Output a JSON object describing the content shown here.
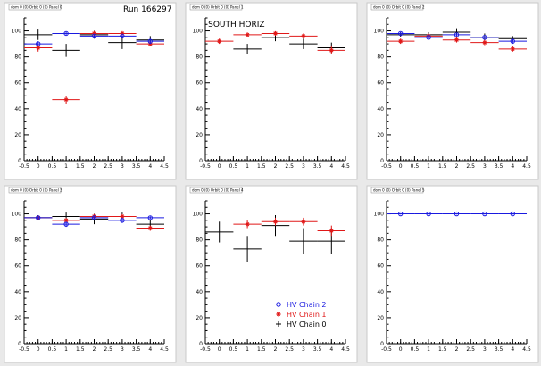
{
  "run_label": "Run 166297",
  "colors": {
    "blue": "#1a1ae0",
    "red": "#e01818",
    "black": "#000000",
    "pad": "#ffffff",
    "frame": "#c9c9c9",
    "bg": "#e9e9e9"
  },
  "legend": [
    {
      "label": "HV Chain 2",
      "color": "#1a1ae0",
      "marker": "circle"
    },
    {
      "label": "HV Chain 1",
      "color": "#e01818",
      "marker": "star"
    },
    {
      "label": "HV Chain 0",
      "color": "#000000",
      "marker": "cross"
    }
  ],
  "chart_data": [
    {
      "type": "scatter",
      "title": "dom 0 (0) Orbit 0 (0) Panel 0",
      "xlim": [
        -0.5,
        4.5
      ],
      "ylim": [
        0,
        110
      ],
      "xticks": [
        "-0.5",
        "0",
        "0.5",
        "1",
        "1.5",
        "2",
        "2.5",
        "3",
        "3.5",
        "4",
        "4.5"
      ],
      "yticks": [
        "0",
        "20",
        "40",
        "60",
        "80",
        "100"
      ],
      "annotation": "",
      "series": [
        {
          "name": "HV Chain 2",
          "color": "#1a1ae0",
          "marker": "circle",
          "x": [
            0,
            1,
            2,
            3,
            4
          ],
          "y": [
            90,
            98,
            96,
            96,
            92
          ],
          "yerr": [
            2,
            1,
            1,
            1,
            2
          ]
        },
        {
          "name": "HV Chain 1",
          "color": "#e01818",
          "marker": "star",
          "x": [
            0,
            1,
            2,
            3,
            4
          ],
          "y": [
            87,
            47,
            98,
            98,
            90
          ],
          "yerr": [
            3,
            3,
            1,
            1,
            2
          ]
        },
        {
          "name": "HV Chain 0",
          "color": "#000000",
          "marker": "cross",
          "x": [
            0,
            1,
            2,
            3,
            4
          ],
          "y": [
            97,
            85,
            97,
            91,
            93
          ],
          "yerr": [
            4,
            5,
            3,
            5,
            3
          ]
        }
      ]
    },
    {
      "type": "scatter",
      "title": "dom 0 (0) Orbit 0 (0) Panel 1",
      "xlim": [
        -0.5,
        4.5
      ],
      "ylim": [
        0,
        110
      ],
      "xticks": [
        "-0.5",
        "0",
        "0.5",
        "1",
        "1.5",
        "2",
        "2.5",
        "3",
        "3.5",
        "4",
        "4.5"
      ],
      "yticks": [
        "0",
        "20",
        "40",
        "60",
        "80",
        "100"
      ],
      "annotation": "SOUTH HORIZ",
      "series": [
        {
          "name": "HV Chain 1",
          "color": "#e01818",
          "marker": "star",
          "x": [
            0,
            1,
            2,
            3,
            4
          ],
          "y": [
            92,
            97,
            98,
            96,
            85
          ],
          "yerr": [
            2,
            1,
            1,
            2,
            3
          ]
        },
        {
          "name": "HV Chain 0",
          "color": "#000000",
          "marker": "cross",
          "x": [
            1,
            2,
            3,
            4
          ],
          "y": [
            86,
            95,
            90,
            87
          ],
          "yerr": [
            4,
            3,
            4,
            4
          ]
        }
      ]
    },
    {
      "type": "scatter",
      "title": "dom 0 (0) Orbit 0 (0) Panel 2",
      "xlim": [
        -0.5,
        4.5
      ],
      "ylim": [
        0,
        110
      ],
      "xticks": [
        "-0.5",
        "0",
        "0.5",
        "1",
        "1.5",
        "2",
        "2.5",
        "3",
        "3.5",
        "4",
        "4.5"
      ],
      "yticks": [
        "0",
        "20",
        "40",
        "60",
        "80",
        "100"
      ],
      "annotation": "",
      "series": [
        {
          "name": "HV Chain 2",
          "color": "#1a1ae0",
          "marker": "circle",
          "x": [
            0,
            1,
            2,
            3,
            4
          ],
          "y": [
            98,
            95,
            97,
            95,
            92
          ],
          "yerr": [
            1,
            1,
            1,
            1,
            2
          ]
        },
        {
          "name": "HV Chain 1",
          "color": "#e01818",
          "marker": "star",
          "x": [
            0,
            1,
            2,
            3,
            4
          ],
          "y": [
            92,
            96,
            93,
            91,
            86
          ],
          "yerr": [
            2,
            1,
            2,
            2,
            2
          ]
        },
        {
          "name": "HV Chain 0",
          "color": "#000000",
          "marker": "cross",
          "x": [
            0,
            1,
            2,
            3,
            4
          ],
          "y": [
            97,
            97,
            99,
            95,
            94
          ],
          "yerr": [
            2,
            2,
            3,
            3,
            2
          ]
        }
      ]
    },
    {
      "type": "scatter",
      "title": "dom 0 (0) Orbit 0 (0) Panel 3",
      "xlim": [
        -0.5,
        4.5
      ],
      "ylim": [
        0,
        110
      ],
      "xticks": [
        "-0.5",
        "0",
        "0.5",
        "1",
        "1.5",
        "2",
        "2.5",
        "3",
        "3.5",
        "4",
        "4.5"
      ],
      "yticks": [
        "0",
        "20",
        "40",
        "60",
        "80",
        "100"
      ],
      "annotation": "",
      "series": [
        {
          "name": "HV Chain 2",
          "color": "#1a1ae0",
          "marker": "circle",
          "x": [
            0,
            1,
            2,
            3,
            4
          ],
          "y": [
            97,
            92,
            97,
            95,
            97
          ],
          "yerr": [
            1,
            2,
            1,
            2,
            1
          ]
        },
        {
          "name": "HV Chain 1",
          "color": "#e01818",
          "marker": "star",
          "x": [
            0,
            1,
            2,
            3,
            4
          ],
          "y": [
            97,
            95,
            98,
            98,
            89
          ],
          "yerr": [
            1,
            1,
            1,
            1,
            2
          ]
        },
        {
          "name": "HV Chain 0",
          "color": "#000000",
          "marker": "cross",
          "x": [
            0,
            1,
            2,
            3,
            4
          ],
          "y": [
            97,
            98,
            96,
            98,
            92
          ],
          "yerr": [
            2,
            3,
            4,
            3,
            3
          ]
        }
      ]
    },
    {
      "type": "scatter",
      "title": "dom 0 (0) Orbit 0 (0) Panel 4",
      "xlim": [
        -0.5,
        4.5
      ],
      "ylim": [
        0,
        110
      ],
      "xticks": [
        "-0.5",
        "0",
        "0.5",
        "1",
        "1.5",
        "2",
        "2.5",
        "3",
        "3.5",
        "4",
        "4.5"
      ],
      "yticks": [
        "0",
        "20",
        "40",
        "60",
        "80",
        "100"
      ],
      "annotation": "",
      "series": [
        {
          "name": "HV Chain 1",
          "color": "#e01818",
          "marker": "star",
          "x": [
            1,
            2,
            3,
            4
          ],
          "y": [
            92,
            94,
            94,
            87
          ],
          "yerr": [
            3,
            3,
            3,
            4
          ]
        },
        {
          "name": "HV Chain 0",
          "color": "#000000",
          "marker": "cross",
          "x": [
            0,
            1,
            2,
            3,
            4
          ],
          "y": [
            86,
            73,
            91,
            79,
            79
          ],
          "yerr": [
            8,
            10,
            8,
            10,
            10
          ]
        }
      ]
    },
    {
      "type": "scatter",
      "title": "dom 0 (0) Orbit 0 (0) Panel 5",
      "xlim": [
        -0.5,
        4.5
      ],
      "ylim": [
        0,
        110
      ],
      "xticks": [
        "-0.5",
        "0",
        "0.5",
        "1",
        "1.5",
        "2",
        "2.5",
        "3",
        "3.5",
        "4",
        "4.5"
      ],
      "yticks": [
        "0",
        "20",
        "40",
        "60",
        "80",
        "100"
      ],
      "annotation": "",
      "series": [
        {
          "name": "HV Chain 2",
          "color": "#1a1ae0",
          "marker": "circle",
          "x": [
            0,
            1,
            2,
            3,
            4
          ],
          "y": [
            100,
            100,
            100,
            100,
            100
          ],
          "yerr": [
            0.5,
            0.5,
            0.5,
            0.5,
            0.5
          ]
        }
      ]
    }
  ]
}
